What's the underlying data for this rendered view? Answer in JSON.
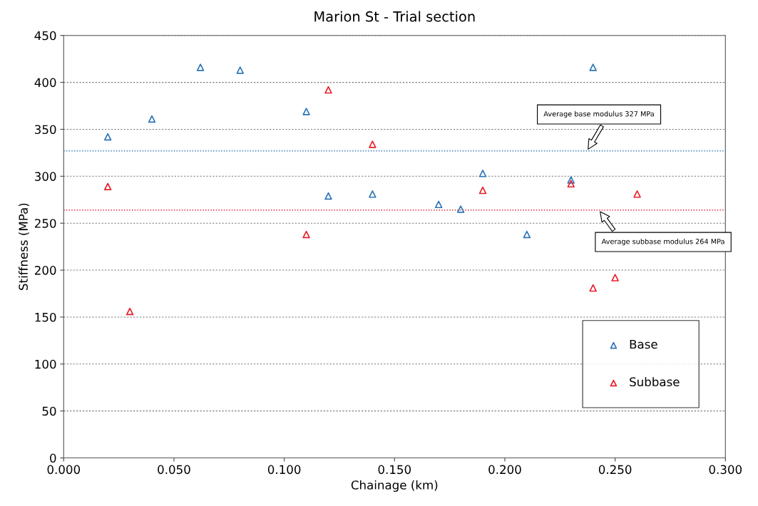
{
  "chart_data": {
    "type": "scatter",
    "title": "Marion St - Trial section",
    "xlabel": "Chainage (km)",
    "ylabel": "Stiffness (MPa)",
    "marker": "triangle",
    "grid": "y",
    "legend": "bottom right",
    "xlim": [
      0,
      0.3
    ],
    "xticks": [
      {
        "value": 0,
        "label": "0.000"
      },
      {
        "value": 0.05,
        "label": "0.050"
      },
      {
        "value": 0.1,
        "label": "0.100"
      },
      {
        "value": 0.15,
        "label": "0.150"
      },
      {
        "value": 0.2,
        "label": "0.200"
      },
      {
        "value": 0.25,
        "label": "0.250"
      },
      {
        "value": 0.3,
        "label": "0.300"
      }
    ],
    "ylim": [
      0,
      450
    ],
    "yticks": [
      0,
      50,
      100,
      150,
      200,
      250,
      300,
      350,
      400,
      450
    ],
    "series": [
      {
        "name": "Base",
        "color": "#2e75b6",
        "x": [
          0.02,
          0.04,
          0.062,
          0.08,
          0.11,
          0.12,
          0.14,
          0.17,
          0.18,
          0.19,
          0.21,
          0.23,
          0.24
        ],
        "values": [
          342,
          361,
          416,
          413,
          369,
          279,
          281,
          270,
          265,
          303,
          238,
          296,
          416
        ]
      },
      {
        "name": "Subbase",
        "color": "#e8202a",
        "x": [
          0.02,
          0.03,
          0.11,
          0.12,
          0.14,
          0.19,
          0.23,
          0.24,
          0.25,
          0.26
        ],
        "values": [
          289,
          156,
          238,
          392,
          334,
          285,
          292,
          181,
          192,
          281
        ]
      }
    ],
    "ref_lines": [
      {
        "axis": "y",
        "value": 327,
        "color": "#2e75b6",
        "line_style": "dotted"
      },
      {
        "axis": "y",
        "value": 264,
        "color": "#e8202a",
        "line_style": "dotted"
      }
    ],
    "annotations": [
      "Average base modulus 327 MPa",
      "Average subbase modulus 264 MPa"
    ]
  }
}
